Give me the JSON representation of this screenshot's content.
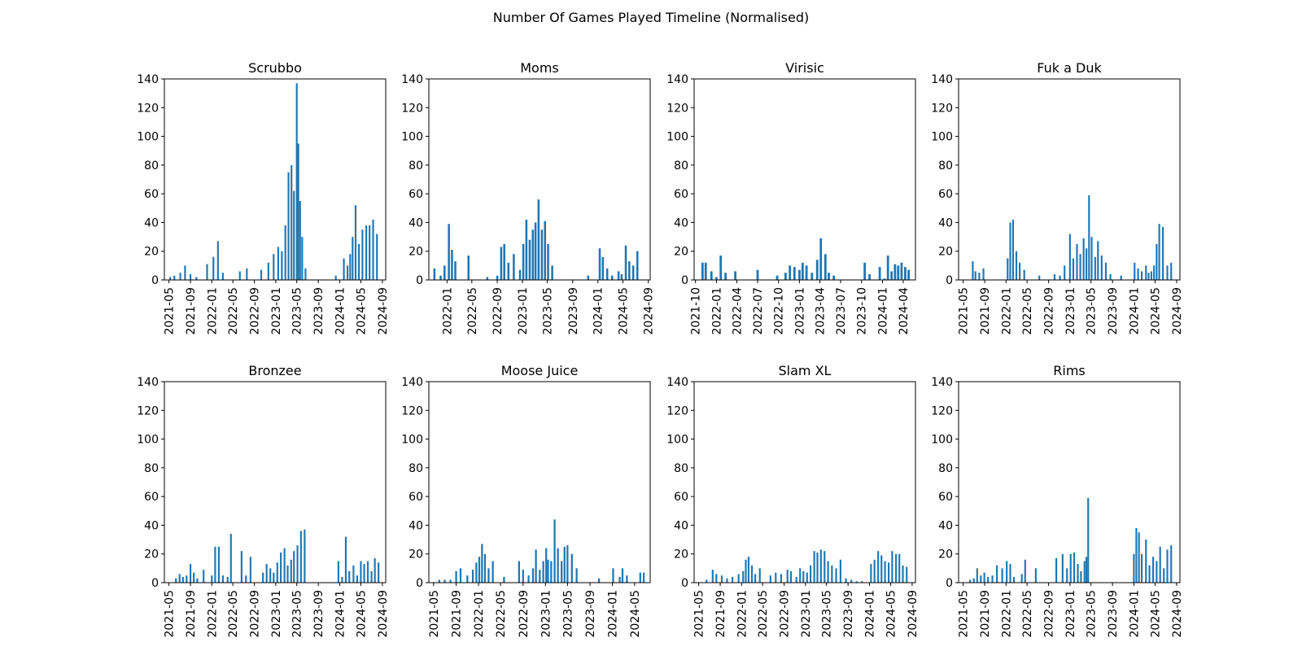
{
  "title": "Number Of Games Played Timeline (Normalised)",
  "colors": {
    "bar": "#1f77b4",
    "axis": "#000000",
    "background": "#ffffff"
  },
  "chart_data": [
    {
      "type": "bar",
      "title": "Scrubbo",
      "xlabel": "",
      "ylabel": "",
      "ylim": [
        0,
        140
      ],
      "yticks": [
        0,
        20,
        40,
        60,
        80,
        100,
        120,
        140
      ],
      "xticks": [
        "2021-05",
        "2021-09",
        "2022-01",
        "2022-05",
        "2022-09",
        "2023-01",
        "2023-05",
        "2023-09",
        "2024-01",
        "2024-05",
        "2024-09"
      ],
      "xlim": [
        "2021-04-05",
        "2024-09-20"
      ],
      "grid": false,
      "x": [
        "2021-05-08",
        "2021-06-01",
        "2021-07-05",
        "2021-08-01",
        "2021-09-01",
        "2021-10-05",
        "2021-12-05",
        "2022-01-10",
        "2022-02-05",
        "2022-03-05",
        "2022-06-10",
        "2022-07-20",
        "2022-10-10",
        "2022-11-20",
        "2022-12-20",
        "2023-01-15",
        "2023-02-05",
        "2023-02-25",
        "2023-03-15",
        "2023-04-01",
        "2023-04-15",
        "2023-05-01",
        "2023-05-10",
        "2023-05-20",
        "2023-06-01",
        "2023-06-20",
        "2023-12-10",
        "2024-01-25",
        "2024-02-15",
        "2024-03-01",
        "2024-03-15",
        "2024-04-01",
        "2024-04-20",
        "2024-05-10",
        "2024-06-01",
        "2024-06-20",
        "2024-07-10",
        "2024-08-01"
      ],
      "values": [
        2,
        3,
        5,
        10,
        4,
        2,
        11,
        16,
        27,
        5,
        6,
        8,
        7,
        12,
        18,
        23,
        20,
        38,
        75,
        80,
        62,
        137,
        95,
        55,
        30,
        8,
        3,
        15,
        10,
        18,
        30,
        52,
        25,
        35,
        38,
        38,
        42,
        32
      ]
    },
    {
      "type": "bar",
      "title": "Moms",
      "xlabel": "",
      "ylabel": "",
      "ylim": [
        0,
        140
      ],
      "yticks": [
        0,
        20,
        40,
        60,
        80,
        100,
        120,
        140
      ],
      "xticks": [
        "2022-01",
        "2022-05",
        "2022-09",
        "2023-01",
        "2023-05",
        "2023-09",
        "2024-01",
        "2024-05",
        "2024-09"
      ],
      "xlim": [
        "2021-10-05",
        "2024-09-10"
      ],
      "grid": false,
      "x": [
        "2021-11-01",
        "2021-12-01",
        "2021-12-20",
        "2022-01-10",
        "2022-01-25",
        "2022-02-10",
        "2022-04-15",
        "2022-07-15",
        "2022-09-01",
        "2022-09-20",
        "2022-10-05",
        "2022-10-25",
        "2022-11-20",
        "2022-12-20",
        "2023-01-05",
        "2023-01-20",
        "2023-02-05",
        "2023-02-20",
        "2023-03-05",
        "2023-03-20",
        "2023-04-05",
        "2023-04-20",
        "2023-05-05",
        "2023-05-25",
        "2023-11-15",
        "2024-01-10",
        "2024-01-25",
        "2024-02-15",
        "2024-03-10",
        "2024-04-10",
        "2024-04-25",
        "2024-05-15",
        "2024-06-01",
        "2024-06-20",
        "2024-07-10"
      ],
      "values": [
        8,
        3,
        10,
        39,
        21,
        13,
        17,
        2,
        3,
        23,
        25,
        12,
        18,
        7,
        25,
        42,
        28,
        35,
        40,
        56,
        35,
        41,
        25,
        10,
        3,
        22,
        16,
        8,
        3,
        6,
        4,
        24,
        13,
        10,
        20
      ]
    },
    {
      "type": "bar",
      "title": "Virisic",
      "xlabel": "",
      "ylabel": "",
      "ylim": [
        0,
        140
      ],
      "yticks": [
        0,
        20,
        40,
        60,
        80,
        100,
        120,
        140
      ],
      "xticks": [
        "2021-10",
        "2022-01",
        "2022-04",
        "2022-07",
        "2022-10",
        "2023-01",
        "2023-04",
        "2023-07",
        "2023-10",
        "2024-01",
        "2024-04"
      ],
      "xlim": [
        "2021-09-25",
        "2024-05-25"
      ],
      "grid": false,
      "x": [
        "2021-11-01",
        "2021-11-15",
        "2021-12-10",
        "2022-01-01",
        "2022-01-20",
        "2022-02-10",
        "2022-03-25",
        "2022-07-01",
        "2022-09-25",
        "2022-11-01",
        "2022-11-20",
        "2022-12-10",
        "2023-01-01",
        "2023-01-15",
        "2023-02-01",
        "2023-02-25",
        "2023-03-20",
        "2023-04-05",
        "2023-04-25",
        "2023-05-10",
        "2023-06-01",
        "2023-10-15",
        "2023-11-05",
        "2023-12-20",
        "2024-01-10",
        "2024-01-25",
        "2024-02-10",
        "2024-02-25",
        "2024-03-10",
        "2024-03-25",
        "2024-04-10",
        "2024-04-25"
      ],
      "values": [
        12,
        12,
        6,
        2,
        17,
        5,
        6,
        7,
        3,
        5,
        10,
        9,
        7,
        12,
        10,
        5,
        14,
        29,
        18,
        5,
        3,
        12,
        4,
        9,
        1,
        17,
        6,
        11,
        10,
        12,
        9,
        7
      ]
    },
    {
      "type": "bar",
      "title": "Fuk a Duk",
      "xlabel": "",
      "ylabel": "",
      "ylim": [
        0,
        140
      ],
      "yticks": [
        0,
        20,
        40,
        60,
        80,
        100,
        120,
        140
      ],
      "xticks": [
        "2021-05",
        "2021-09",
        "2022-01",
        "2022-05",
        "2022-09",
        "2023-01",
        "2023-05",
        "2023-09",
        "2024-01",
        "2024-05",
        "2024-09"
      ],
      "xlim": [
        "2021-04-05",
        "2024-09-20"
      ],
      "grid": false,
      "x": [
        "2021-06-25",
        "2021-07-10",
        "2021-08-01",
        "2021-08-25",
        "2022-01-10",
        "2022-01-25",
        "2022-02-10",
        "2022-03-01",
        "2022-03-20",
        "2022-04-15",
        "2022-07-10",
        "2022-10-05",
        "2022-11-05",
        "2022-12-01",
        "2023-01-01",
        "2023-01-20",
        "2023-02-10",
        "2023-03-01",
        "2023-03-20",
        "2023-04-05",
        "2023-04-20",
        "2023-05-05",
        "2023-05-25",
        "2023-06-10",
        "2023-07-01",
        "2023-07-25",
        "2023-08-20",
        "2023-10-20",
        "2024-01-05",
        "2024-01-25",
        "2024-02-15",
        "2024-03-10",
        "2024-03-25",
        "2024-04-10",
        "2024-04-25",
        "2024-05-10",
        "2024-05-25",
        "2024-06-15",
        "2024-07-10",
        "2024-08-01"
      ],
      "values": [
        13,
        6,
        5,
        8,
        15,
        40,
        42,
        20,
        12,
        7,
        3,
        4,
        3,
        10,
        32,
        15,
        25,
        18,
        29,
        22,
        59,
        30,
        16,
        27,
        17,
        12,
        4,
        3,
        12,
        8,
        6,
        10,
        5,
        6,
        10,
        25,
        39,
        37,
        10,
        12
      ]
    },
    {
      "type": "bar",
      "title": "Bronzee",
      "xlabel": "",
      "ylabel": "",
      "ylim": [
        0,
        140
      ],
      "yticks": [
        0,
        20,
        40,
        60,
        80,
        100,
        120,
        140
      ],
      "xticks": [
        "2021-05",
        "2021-09",
        "2022-01",
        "2022-05",
        "2022-09",
        "2023-01",
        "2023-05",
        "2023-09",
        "2024-01",
        "2024-05",
        "2024-09"
      ],
      "xlim": [
        "2021-04-05",
        "2024-09-20"
      ],
      "grid": false,
      "x": [
        "2021-06-10",
        "2021-07-01",
        "2021-07-20",
        "2021-08-10",
        "2021-09-01",
        "2021-09-20",
        "2021-10-10",
        "2021-11-15",
        "2022-01-01",
        "2022-01-20",
        "2022-02-10",
        "2022-03-05",
        "2022-04-01",
        "2022-04-20",
        "2022-06-20",
        "2022-07-15",
        "2022-08-10",
        "2022-10-20",
        "2022-11-10",
        "2022-12-01",
        "2022-12-20",
        "2023-01-10",
        "2023-01-30",
        "2023-02-20",
        "2023-03-10",
        "2023-03-30",
        "2023-04-15",
        "2023-05-05",
        "2023-05-25",
        "2023-06-15",
        "2023-12-25",
        "2024-01-15",
        "2024-02-05",
        "2024-02-25",
        "2024-03-20",
        "2024-04-10",
        "2024-05-01",
        "2024-05-20",
        "2024-06-10",
        "2024-07-01",
        "2024-07-20",
        "2024-08-10"
      ],
      "values": [
        3,
        6,
        4,
        5,
        13,
        7,
        3,
        9,
        5,
        25,
        25,
        5,
        4,
        34,
        22,
        5,
        18,
        7,
        13,
        10,
        7,
        14,
        21,
        24,
        12,
        16,
        22,
        26,
        36,
        37,
        15,
        4,
        32,
        8,
        12,
        5,
        15,
        13,
        15,
        8,
        17,
        14
      ]
    },
    {
      "type": "bar",
      "title": "Moose Juice",
      "xlabel": "",
      "ylabel": "",
      "ylim": [
        0,
        140
      ],
      "yticks": [
        0,
        20,
        40,
        60,
        80,
        100,
        120,
        140
      ],
      "xticks": [
        "2021-05",
        "2021-09",
        "2022-01",
        "2022-05",
        "2022-09",
        "2023-01",
        "2023-05",
        "2023-09",
        "2024-01",
        "2024-05"
      ],
      "xlim": [
        "2021-04-05",
        "2024-07-25"
      ],
      "grid": false,
      "x": [
        "2021-06-01",
        "2021-07-01",
        "2021-08-01",
        "2021-09-01",
        "2021-09-25",
        "2021-11-01",
        "2021-12-01",
        "2021-12-20",
        "2022-01-05",
        "2022-01-20",
        "2022-02-05",
        "2022-02-25",
        "2022-03-20",
        "2022-05-20",
        "2022-08-10",
        "2022-09-01",
        "2022-10-01",
        "2022-10-25",
        "2022-11-10",
        "2022-12-01",
        "2022-12-20",
        "2023-01-05",
        "2023-01-15",
        "2023-02-01",
        "2023-02-20",
        "2023-03-10",
        "2023-03-30",
        "2023-04-15",
        "2023-05-01",
        "2023-05-25",
        "2023-06-20",
        "2023-10-20",
        "2024-01-05",
        "2024-02-10",
        "2024-02-25",
        "2024-03-20",
        "2024-06-01",
        "2024-06-20"
      ],
      "values": [
        2,
        2,
        2,
        8,
        10,
        5,
        9,
        14,
        18,
        27,
        20,
        10,
        15,
        4,
        15,
        9,
        5,
        10,
        23,
        9,
        15,
        24,
        16,
        15,
        44,
        24,
        15,
        25,
        26,
        20,
        10,
        3,
        10,
        4,
        10,
        5,
        7,
        7
      ]
    },
    {
      "type": "bar",
      "title": "Slam XL",
      "xlabel": "",
      "ylabel": "",
      "ylim": [
        0,
        140
      ],
      "yticks": [
        0,
        20,
        40,
        60,
        80,
        100,
        120,
        140
      ],
      "xticks": [
        "2021-05",
        "2021-09",
        "2022-01",
        "2022-05",
        "2022-09",
        "2023-01",
        "2023-05",
        "2023-09",
        "2024-01",
        "2024-05",
        "2024-09"
      ],
      "xlim": [
        "2021-04-05",
        "2024-09-20"
      ],
      "grid": false,
      "x": [
        "2021-06-15",
        "2021-07-20",
        "2021-08-10",
        "2021-09-10",
        "2021-10-10",
        "2021-11-10",
        "2021-12-15",
        "2022-01-10",
        "2022-01-25",
        "2022-02-10",
        "2022-03-01",
        "2022-03-20",
        "2022-04-15",
        "2022-06-15",
        "2022-07-15",
        "2022-08-15",
        "2022-09-20",
        "2022-10-10",
        "2022-11-10",
        "2022-12-01",
        "2022-12-20",
        "2023-01-10",
        "2023-01-30",
        "2023-02-20",
        "2023-03-10",
        "2023-03-30",
        "2023-04-20",
        "2023-05-10",
        "2023-06-01",
        "2023-06-25",
        "2023-07-20",
        "2023-08-20",
        "2023-09-20",
        "2023-10-20",
        "2023-11-20",
        "2024-01-10",
        "2024-01-30",
        "2024-02-20",
        "2024-03-10",
        "2024-03-30",
        "2024-04-20",
        "2024-05-10",
        "2024-06-01",
        "2024-06-20",
        "2024-07-10",
        "2024-08-01"
      ],
      "values": [
        2,
        9,
        6,
        5,
        3,
        4,
        6,
        8,
        16,
        18,
        12,
        6,
        10,
        5,
        7,
        6,
        9,
        8,
        4,
        10,
        8,
        7,
        12,
        22,
        21,
        23,
        22,
        15,
        12,
        10,
        16,
        3,
        2,
        1,
        1,
        13,
        16,
        22,
        19,
        15,
        14,
        22,
        20,
        20,
        12,
        11
      ]
    },
    {
      "type": "bar",
      "title": "Rims",
      "xlabel": "",
      "ylabel": "",
      "ylim": [
        0,
        140
      ],
      "yticks": [
        0,
        20,
        40,
        60,
        80,
        100,
        120,
        140
      ],
      "xticks": [
        "2021-05",
        "2021-09",
        "2022-01",
        "2022-05",
        "2022-09",
        "2023-01",
        "2023-05",
        "2023-09",
        "2024-01",
        "2024-05",
        "2024-09"
      ],
      "xlim": [
        "2021-04-05",
        "2024-09-20"
      ],
      "grid": false,
      "x": [
        "2021-06-10",
        "2021-07-01",
        "2021-07-20",
        "2021-08-10",
        "2021-08-30",
        "2021-09-20",
        "2021-10-15",
        "2021-11-10",
        "2021-12-10",
        "2022-01-05",
        "2022-01-25",
        "2022-02-15",
        "2022-04-01",
        "2022-04-20",
        "2022-06-20",
        "2022-10-15",
        "2022-11-20",
        "2022-12-15",
        "2023-01-05",
        "2023-01-25",
        "2023-02-15",
        "2023-03-05",
        "2023-03-25",
        "2023-04-05",
        "2023-04-15",
        "2024-01-01",
        "2024-01-15",
        "2024-01-30",
        "2024-02-15",
        "2024-03-10",
        "2024-03-30",
        "2024-04-20",
        "2024-05-10",
        "2024-05-30",
        "2024-06-20",
        "2024-07-10",
        "2024-08-01"
      ],
      "values": [
        2,
        3,
        10,
        5,
        7,
        4,
        5,
        12,
        10,
        15,
        13,
        4,
        6,
        16,
        10,
        17,
        20,
        10,
        20,
        21,
        13,
        8,
        15,
        18,
        59,
        20,
        38,
        35,
        20,
        30,
        12,
        18,
        15,
        25,
        10,
        23,
        26
      ]
    }
  ]
}
